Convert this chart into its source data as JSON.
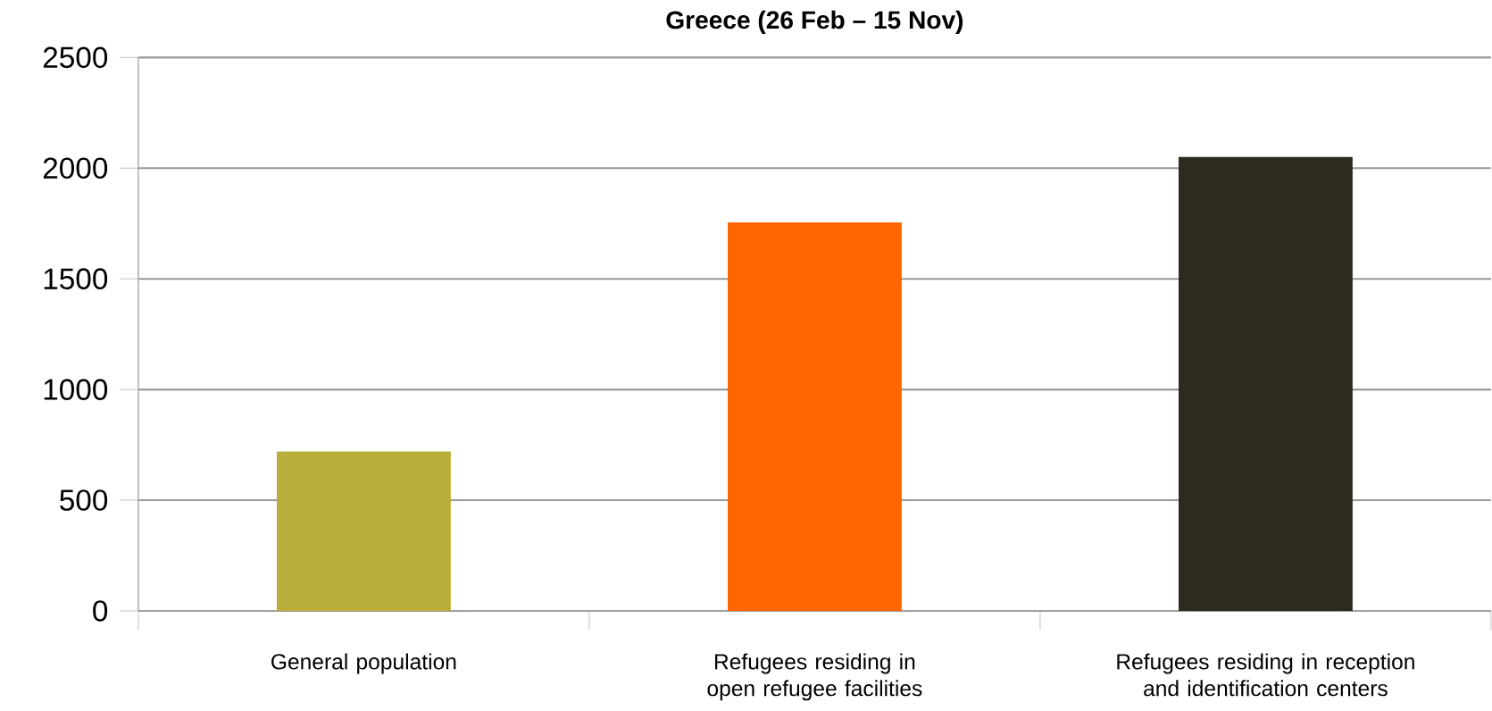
{
  "chart_data": {
    "type": "bar",
    "title": "Greece (26 Feb – 15 Nov)",
    "categories": [
      "General population",
      "Refugees residing in open refugee facilities",
      "Refugees residing in reception and identification centers"
    ],
    "values": [
      720,
      1755,
      2050
    ],
    "colors": [
      "#b8ae39",
      "#ff6600",
      "#2f2a20"
    ],
    "ylim": [
      0,
      2500
    ],
    "yticks": [
      0,
      500,
      1000,
      1500,
      2000,
      2500
    ],
    "grid": "y"
  }
}
